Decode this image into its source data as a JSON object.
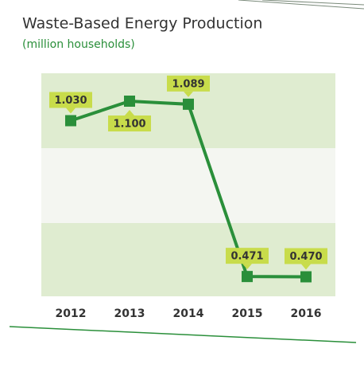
{
  "chart_data": {
    "type": "line",
    "title": "Waste-Based Energy Production",
    "subtitle": "(million households)",
    "categories": [
      "2012",
      "2013",
      "2014",
      "2015",
      "2016"
    ],
    "values": [
      1.03,
      1.1,
      1.089,
      0.471,
      0.47
    ],
    "value_labels": [
      "1.030",
      "1.100",
      "1.089",
      "0.471",
      "0.470"
    ],
    "color": "#2a8f3a",
    "ylim": [
      0.4,
      1.2
    ]
  }
}
